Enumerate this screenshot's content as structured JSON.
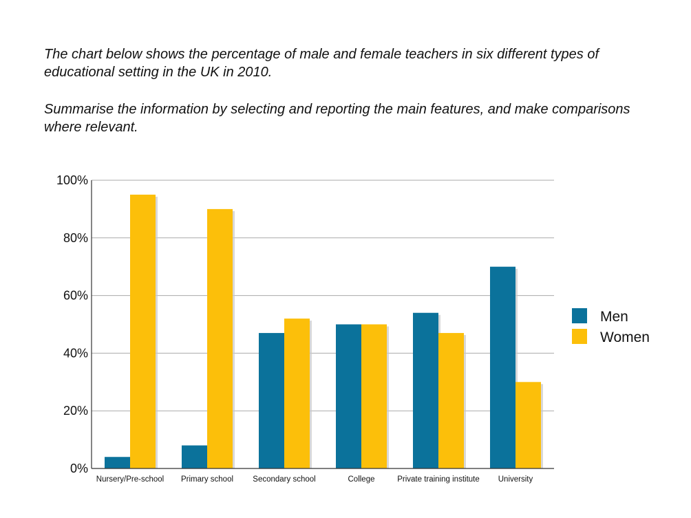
{
  "prompt": {
    "line1": "The chart below shows the percentage of male and female teachers in six different types of educational setting in the UK in 2010.",
    "line2": "Summarise the information by selecting and reporting the main features, and make comparisons where relevant."
  },
  "chart_data": {
    "type": "bar",
    "title": "",
    "xlabel": "",
    "ylabel": "",
    "ylim": [
      0,
      100
    ],
    "yticks": [
      0,
      20,
      40,
      60,
      80,
      100
    ],
    "ytick_labels": [
      "0%",
      "20%",
      "40%",
      "60%",
      "80%",
      "100%"
    ],
    "grid": true,
    "legend_position": "right",
    "categories": [
      "Nursery/Pre-school",
      "Primary school",
      "Secondary school",
      "College",
      "Private training institute",
      "University"
    ],
    "series": [
      {
        "name": "Men",
        "color": "#0b729b",
        "values": [
          4,
          8,
          47,
          50,
          54,
          70
        ]
      },
      {
        "name": "Women",
        "color": "#fcbf0a",
        "values": [
          95,
          90,
          52,
          50,
          47,
          30
        ]
      }
    ]
  }
}
